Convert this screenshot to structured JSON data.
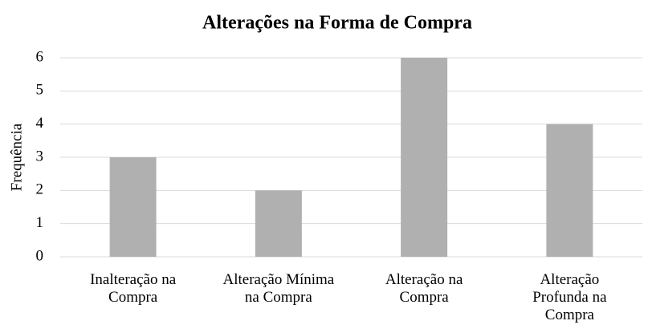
{
  "chart_data": {
    "type": "bar",
    "title": "Alterações na Forma de Compra",
    "categories": [
      "Inalteração na\nCompra",
      "Alteração Mínima\nna Compra",
      "Alteração na\nCompra",
      "Alteração\nProfunda na\nCompra"
    ],
    "values": [
      3,
      2,
      6,
      4
    ],
    "color": "#b0b0b0",
    "y_label": "Frequência",
    "ylim": [
      0,
      6
    ],
    "yticks": [
      0,
      1,
      2,
      3,
      4,
      5,
      6
    ],
    "grid": true
  }
}
